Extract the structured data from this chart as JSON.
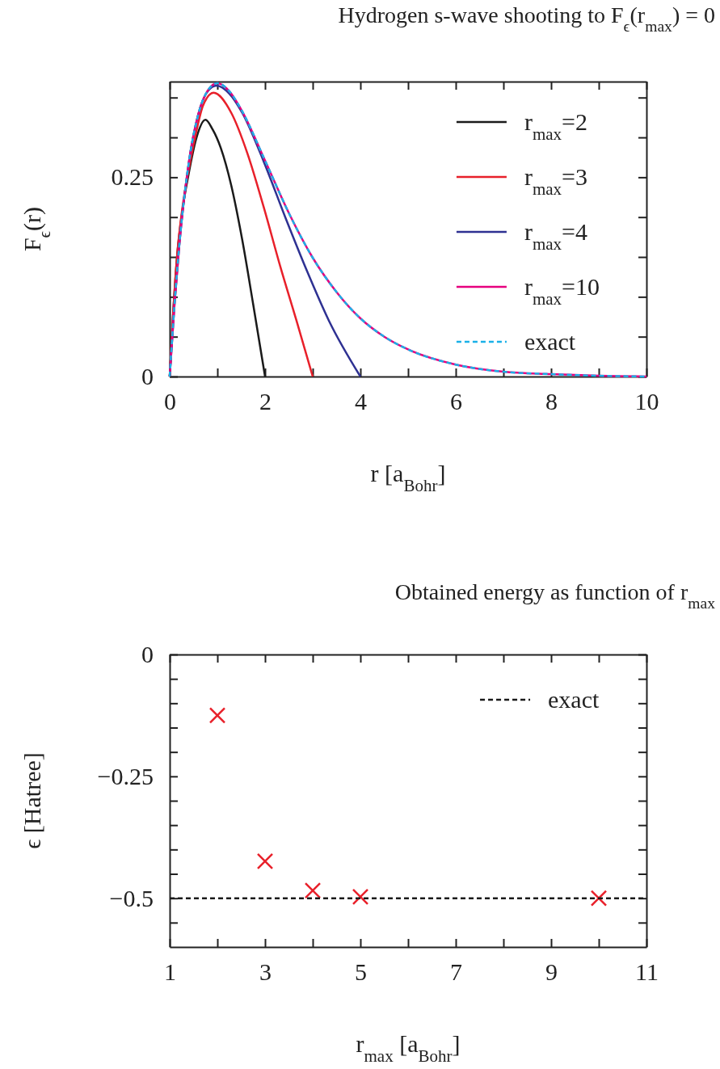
{
  "chart_data": [
    {
      "type": "line",
      "title": "Hydrogen s-wave shooting to F$_{ϵ}$(r$_{max}$) = 0",
      "xlabel": "r [a$_{Bohr}$]",
      "ylabel": "F$_{ϵ}$(r)",
      "xlim": [
        0,
        10
      ],
      "ylim": [
        0,
        0.37
      ],
      "xticks": [
        {
          "value": 0,
          "label": "0"
        },
        {
          "value": 1,
          "label": null
        },
        {
          "value": 2,
          "label": "2"
        },
        {
          "value": 3,
          "label": null
        },
        {
          "value": 4,
          "label": "4"
        },
        {
          "value": 5,
          "label": null
        },
        {
          "value": 6,
          "label": "6"
        },
        {
          "value": 7,
          "label": null
        },
        {
          "value": 8,
          "label": "8"
        },
        {
          "value": 9,
          "label": null
        },
        {
          "value": 10,
          "label": "10"
        }
      ],
      "yticks": [
        {
          "value": 0,
          "label": "0"
        },
        {
          "value": 0.05,
          "label": null
        },
        {
          "value": 0.1,
          "label": null
        },
        {
          "value": 0.15,
          "label": null
        },
        {
          "value": 0.2,
          "label": null
        },
        {
          "value": 0.25,
          "label": "0.25"
        },
        {
          "value": 0.3,
          "label": null
        },
        {
          "value": 0.35,
          "label": null
        }
      ],
      "grid": false,
      "legend": "right",
      "marker": "none",
      "series": [
        {
          "name": "r$_{max}$=2",
          "color": "#1a1a1a",
          "line_style": "solid",
          "x": [
            0,
            0.07,
            0.15,
            0.27,
            0.4,
            0.55,
            0.75,
            0.9,
            1.07,
            1.29,
            1.52,
            1.75,
            2
          ],
          "values": [
            0,
            0.077,
            0.147,
            0.21,
            0.255,
            0.297,
            0.322,
            0.31,
            0.287,
            0.24,
            0.172,
            0.091,
            0
          ]
        },
        {
          "name": "r$_{max}$=3",
          "color": "#e8202a",
          "line_style": "solid",
          "x": [
            0,
            0.07,
            0.15,
            0.27,
            0.4,
            0.55,
            0.7,
            0.92,
            1.29,
            1.63,
            1.97,
            2.32,
            2.66,
            3
          ],
          "values": [
            0,
            0.077,
            0.148,
            0.213,
            0.26,
            0.305,
            0.34,
            0.356,
            0.331,
            0.28,
            0.213,
            0.138,
            0.07,
            0
          ]
        },
        {
          "name": "r$_{max}$=4",
          "color": "#2e3192",
          "line_style": "solid",
          "x": [
            0,
            0.1,
            0.2,
            0.4,
            0.6,
            0.8,
            0.98,
            1.25,
            1.52,
            1.97,
            2.43,
            2.89,
            3.34,
            4
          ],
          "values": [
            0,
            0.09,
            0.164,
            0.268,
            0.329,
            0.358,
            0.365,
            0.355,
            0.331,
            0.27,
            0.199,
            0.131,
            0.07,
            0
          ]
        },
        {
          "name": "r$_{max}$=10",
          "color": "#e6007e",
          "line_style": "solid",
          "x": [
            0,
            0.1,
            0.2,
            0.4,
            0.6,
            0.8,
            1,
            1.25,
            1.5,
            2,
            2.5,
            3,
            3.5,
            4,
            4.5,
            5,
            6,
            7,
            8,
            9,
            10
          ],
          "values": [
            0,
            0.09,
            0.164,
            0.268,
            0.329,
            0.359,
            0.368,
            0.358,
            0.335,
            0.271,
            0.205,
            0.149,
            0.106,
            0.073,
            0.05,
            0.034,
            0.015,
            0.006,
            0.003,
            0.001,
            0
          ]
        },
        {
          "name": "exact",
          "color": "#1ab0e8",
          "line_style": "dashed",
          "x": [
            0,
            0.1,
            0.2,
            0.4,
            0.6,
            0.8,
            1,
            1.25,
            1.5,
            2,
            2.5,
            3,
            3.5,
            4,
            4.5,
            5,
            6,
            7,
            8,
            9,
            10
          ],
          "values": [
            0,
            0.09,
            0.164,
            0.268,
            0.329,
            0.359,
            0.368,
            0.358,
            0.335,
            0.271,
            0.205,
            0.149,
            0.106,
            0.073,
            0.05,
            0.034,
            0.015,
            0.006,
            0.003,
            0.001,
            0
          ]
        }
      ]
    },
    {
      "type": "scatter",
      "title": "Obtained energy as function of r$_{max}$",
      "xlabel": "r$_{max}$ [a$_{Bohr}$]",
      "ylabel": "ϵ [Hatree]",
      "xlim": [
        1,
        11
      ],
      "ylim": [
        -0.6,
        0
      ],
      "xticks": [
        1,
        {
          "value": 2,
          "label": null
        },
        3,
        {
          "value": 4,
          "label": null
        },
        5,
        {
          "value": 6,
          "label": null
        },
        7,
        {
          "value": 8,
          "label": null
        },
        9,
        {
          "value": 10,
          "label": null
        },
        11
      ],
      "yticks": [
        {
          "value": -0.55,
          "label": null
        },
        {
          "value": -0.5,
          "label": "−0.5"
        },
        {
          "value": -0.45,
          "label": null
        },
        {
          "value": -0.4,
          "label": null
        },
        {
          "value": -0.35,
          "label": null
        },
        {
          "value": -0.3,
          "label": null
        },
        {
          "value": -0.25,
          "label": "−0.25"
        },
        {
          "value": -0.2,
          "label": null
        },
        {
          "value": -0.15,
          "label": null
        },
        {
          "value": -0.1,
          "label": null
        },
        {
          "value": -0.05,
          "label": null
        },
        0
      ],
      "grid": false,
      "legend": "top right",
      "marker": "cross",
      "series": [
        {
          "color": "#e8202a",
          "x": [
            2,
            3,
            4,
            5,
            10
          ],
          "values": [
            -0.125,
            -0.424,
            -0.484,
            -0.497,
            -0.5
          ]
        },
        {
          "type": "line",
          "name": "exact",
          "color": "#1a1a1a",
          "line_style": "dashed",
          "marker": "none",
          "x": [
            1,
            11
          ],
          "values": [
            -0.5,
            -0.5
          ]
        }
      ]
    }
  ]
}
